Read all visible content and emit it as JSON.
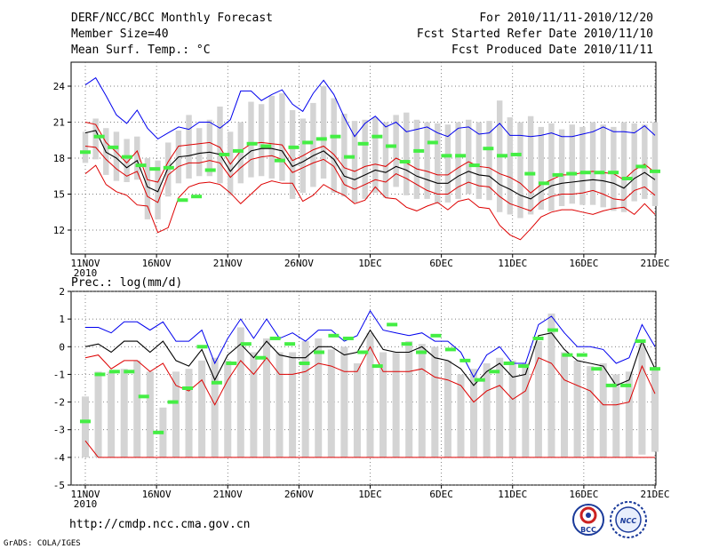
{
  "header": {
    "title": "DERF/NCC/BCC Monthly Forecast",
    "member": "Member Size=40",
    "variable": "Mean Surf. Temp.: °C",
    "period": "For 2010/11/11-2010/12/20",
    "refer": "Fcst Started Refer Date 2010/11/10",
    "produced": "Fcst Produced Date 2010/11/11"
  },
  "footer": {
    "url": "http://cmdp.ncc.cma.gov.cn",
    "grads": "GrADS: COLA/IGES",
    "bcc_logo": "BCC",
    "ncc_logo": "NCC"
  },
  "colors": {
    "max": "#0000ee",
    "min": "#dd0000",
    "p25": "#dd0000",
    "p75": "#dd0000",
    "mean": "#000000",
    "box": "#d4d4d4",
    "obs": "#44ee44"
  },
  "chart_data": [
    {
      "type": "box",
      "ylabel": "",
      "ylim": [
        10,
        26
      ],
      "yticks": [
        "12",
        "15",
        "18",
        "21",
        "24"
      ],
      "xticks": [
        "11NOV",
        "16NOV",
        "21NOV",
        "26NOV",
        "1DEC",
        "6DEC",
        "11DEC",
        "16DEC",
        "21DEC"
      ],
      "year_label": "2010",
      "max": [
        24.1,
        24.7,
        23.2,
        21.6,
        20.9,
        22.0,
        20.5,
        19.6,
        20.1,
        20.6,
        20.4,
        21.0,
        21.0,
        20.5,
        21.2,
        23.6,
        23.6,
        22.8,
        23.3,
        23.7,
        22.5,
        21.9,
        23.4,
        24.5,
        23.3,
        21.4,
        19.8,
        20.9,
        21.5,
        20.6,
        21.0,
        20.2,
        20.4,
        20.6,
        20.1,
        19.8,
        20.5,
        20.6,
        20.0,
        20.1,
        20.9,
        19.9,
        19.9,
        19.8,
        19.9,
        20.1,
        19.8,
        19.8,
        20.0,
        20.2,
        20.6,
        20.2,
        20.2,
        20.1,
        20.7,
        19.9
      ],
      "p75": [
        21.0,
        20.8,
        19.3,
        18.5,
        17.6,
        18.6,
        16.2,
        16.0,
        17.7,
        19.0,
        19.1,
        19.2,
        19.3,
        18.9,
        17.5,
        18.6,
        19.2,
        19.3,
        19.2,
        19.1,
        17.8,
        18.2,
        18.7,
        19.0,
        18.3,
        17.2,
        16.9,
        17.3,
        17.5,
        17.3,
        18.0,
        17.6,
        17.1,
        16.9,
        16.6,
        16.6,
        17.2,
        17.7,
        17.3,
        17.2,
        16.7,
        16.4,
        15.9,
        15.1,
        15.8,
        16.2,
        16.6,
        16.6,
        16.8,
        16.9,
        16.8,
        16.7,
        16.2,
        17.0,
        17.5,
        16.8
      ],
      "mean": [
        20.1,
        20.3,
        18.5,
        18.0,
        17.2,
        17.8,
        15.6,
        15.2,
        17.2,
        18.1,
        18.2,
        18.4,
        18.5,
        18.3,
        16.9,
        17.9,
        18.6,
        18.8,
        18.8,
        18.6,
        17.3,
        17.7,
        18.2,
        18.6,
        17.9,
        16.5,
        16.2,
        16.6,
        17.0,
        16.8,
        17.3,
        17.0,
        16.5,
        16.2,
        15.9,
        15.9,
        16.5,
        16.9,
        16.6,
        16.5,
        15.8,
        15.4,
        14.9,
        14.6,
        15.2,
        15.7,
        15.9,
        16.0,
        16.1,
        16.2,
        16.1,
        15.9,
        15.5,
        16.3,
        16.8,
        16.2
      ],
      "p25": [
        19.0,
        18.9,
        17.9,
        17.1,
        16.5,
        16.9,
        14.8,
        14.3,
        16.6,
        17.3,
        17.6,
        17.6,
        17.8,
        17.6,
        16.4,
        17.2,
        17.9,
        18.1,
        18.2,
        17.9,
        16.8,
        17.2,
        17.6,
        17.9,
        17.3,
        15.8,
        15.4,
        15.8,
        16.2,
        16.0,
        16.7,
        16.3,
        15.8,
        15.3,
        15.0,
        15.0,
        15.6,
        16.0,
        15.7,
        15.6,
        14.8,
        14.2,
        13.9,
        13.6,
        14.4,
        14.8,
        15.0,
        15.0,
        15.1,
        15.3,
        15.0,
        14.6,
        14.5,
        15.3,
        15.6,
        14.9
      ],
      "min": [
        16.7,
        17.4,
        15.8,
        15.2,
        14.9,
        14.1,
        14.0,
        11.8,
        12.2,
        14.7,
        15.6,
        15.9,
        16.0,
        15.8,
        15.1,
        14.2,
        15.0,
        15.8,
        16.1,
        15.9,
        15.9,
        14.4,
        14.9,
        15.8,
        15.3,
        14.9,
        14.2,
        14.5,
        15.6,
        14.7,
        14.6,
        13.9,
        13.6,
        14.0,
        14.3,
        13.7,
        14.4,
        14.6,
        13.9,
        13.8,
        12.4,
        11.6,
        11.2,
        12.1,
        13.1,
        13.5,
        13.7,
        13.7,
        13.5,
        13.3,
        13.6,
        13.8,
        13.9,
        13.3,
        14.2,
        13.3
      ],
      "box_top": [
        20.2,
        21.3,
        20.5,
        20.2,
        19.6,
        19.8,
        18.0,
        17.8,
        19.3,
        20.3,
        21.6,
        20.5,
        21.2,
        22.3,
        20.2,
        21.0,
        22.7,
        22.5,
        23.2,
        23.4,
        22.0,
        21.3,
        22.6,
        24.0,
        23.0,
        21.7,
        21.1,
        21.2,
        21.4,
        21.0,
        21.6,
        21.8,
        21.2,
        21.0,
        20.9,
        20.8,
        21.0,
        21.2,
        21.0,
        21.1,
        22.8,
        21.4,
        21.0,
        21.5,
        20.6,
        20.9,
        20.4,
        20.8,
        20.6,
        21.0,
        20.8,
        20.6,
        21.0,
        20.9,
        20.8,
        21.0
      ],
      "box_bottom": [
        17.6,
        17.9,
        16.6,
        16.1,
        16.0,
        16.2,
        12.9,
        12.9,
        14.8,
        15.9,
        16.3,
        16.5,
        16.5,
        15.9,
        14.9,
        15.9,
        16.4,
        16.5,
        16.3,
        16.1,
        14.6,
        15.1,
        15.6,
        16.3,
        15.1,
        14.8,
        14.3,
        14.6,
        15.1,
        14.7,
        15.6,
        14.9,
        14.6,
        14.6,
        14.2,
        14.3,
        14.6,
        15.0,
        14.6,
        14.5,
        13.5,
        13.3,
        13.0,
        13.3,
        13.7,
        13.6,
        14.0,
        14.2,
        14.1,
        14.1,
        13.9,
        13.6,
        13.5,
        14.4,
        14.6,
        14.0
      ],
      "obs": [
        18.5,
        19.8,
        18.9,
        18.1,
        17.4,
        17.1,
        17.2,
        14.5,
        14.8,
        17.0,
        18.3,
        18.6,
        19.2,
        19.0,
        17.8,
        18.9,
        19.3,
        19.6,
        19.8,
        18.1,
        19.2,
        19.8,
        19.0,
        17.7,
        18.6,
        19.3,
        18.2,
        18.2,
        17.4,
        18.8,
        18.2,
        18.3,
        16.7,
        15.9,
        16.6,
        16.7,
        16.8,
        16.8,
        16.8,
        16.3,
        17.3,
        16.9
      ]
    },
    {
      "type": "box",
      "title": "Prec.: log(mm/d)",
      "ylim": [
        -5,
        2
      ],
      "yticks": [
        "-5",
        "-4",
        "-3",
        "-2",
        "-1",
        "0",
        "1",
        "2"
      ],
      "xticks": [
        "11NOV",
        "16NOV",
        "21NOV",
        "26NOV",
        "1DEC",
        "6DEC",
        "11DEC",
        "16DEC",
        "21DEC"
      ],
      "year_label": "2010",
      "max": [
        0.7,
        0.7,
        0.5,
        0.9,
        0.9,
        0.6,
        0.9,
        0.2,
        0.2,
        0.6,
        -0.6,
        0.3,
        1.0,
        0.3,
        1.0,
        0.3,
        0.5,
        0.2,
        0.6,
        0.6,
        0.2,
        0.4,
        1.3,
        0.6,
        0.5,
        0.4,
        0.5,
        0.2,
        0.2,
        -0.2,
        -1.1,
        -0.3,
        0.0,
        -0.6,
        -0.6,
        0.8,
        1.1,
        0.5,
        0.0,
        0.0,
        -0.1,
        -0.6,
        -0.4,
        0.8,
        0.0
      ],
      "mean": [
        0.0,
        0.1,
        -0.2,
        0.2,
        0.2,
        -0.2,
        0.2,
        -0.5,
        -0.7,
        -0.1,
        -1.2,
        -0.3,
        0.1,
        -0.4,
        0.2,
        -0.3,
        -0.4,
        -0.4,
        0.0,
        0.0,
        -0.3,
        -0.2,
        0.6,
        -0.1,
        -0.2,
        -0.2,
        0.0,
        -0.4,
        -0.5,
        -0.8,
        -1.4,
        -0.9,
        -0.6,
        -1.1,
        -1.0,
        0.4,
        0.5,
        -0.1,
        -0.5,
        -0.6,
        -0.7,
        -1.4,
        -1.2,
        0.2,
        -0.8
      ],
      "min": [
        -0.4,
        -0.3,
        -0.8,
        -0.5,
        -0.5,
        -0.9,
        -0.6,
        -1.4,
        -1.6,
        -1.2,
        -2.1,
        -1.2,
        -0.5,
        -1.0,
        -0.4,
        -1.0,
        -1.0,
        -0.9,
        -0.6,
        -0.7,
        -0.9,
        -0.9,
        0.0,
        -0.9,
        -0.9,
        -0.9,
        -0.8,
        -1.1,
        -1.2,
        -1.4,
        -2.0,
        -1.6,
        -1.4,
        -1.9,
        -1.6,
        -0.4,
        -0.6,
        -1.2,
        -1.4,
        -1.6,
        -2.1,
        -2.1,
        -2.0,
        -0.7,
        -1.7
      ],
      "p25_low": [
        -3.4,
        -4.0,
        -4.0,
        -4.0,
        -4.0,
        -4.0,
        -4.0,
        -4.0,
        -4.0,
        -4.0,
        -4.0,
        -4.0,
        -4.0,
        -4.0,
        -4.0,
        -4.0,
        -4.0,
        -4.0,
        -4.0,
        -4.0,
        -4.0,
        -4.0,
        -4.0,
        -4.0,
        -4.0,
        -4.0,
        -4.0,
        -4.0,
        -4.0,
        -4.0,
        -4.0,
        -4.0,
        -4.0,
        -4.0,
        -4.0,
        -4.0,
        -4.0,
        -4.0,
        -4.0,
        -4.0,
        -4.0,
        -4.0,
        -4.0,
        -4.0,
        -4.0
      ],
      "box_top": [
        -1.8,
        -0.9,
        -0.9,
        -0.8,
        -0.5,
        -0.9,
        -2.2,
        -0.9,
        -0.8,
        -0.5,
        -0.4,
        -0.5,
        0.7,
        -0.2,
        0.3,
        -0.2,
        -0.2,
        0.2,
        0.3,
        -0.1,
        0.0,
        -0.6,
        0.5,
        -0.2,
        -0.2,
        0.2,
        0.1,
        0.0,
        -0.5,
        -1.0,
        -0.8,
        -0.6,
        -0.4,
        -0.5,
        -0.6,
        0.2,
        1.2,
        -0.2,
        -0.5,
        -0.7,
        -0.6,
        -1.0,
        -0.9,
        0.1,
        -0.8
      ],
      "box_bottom": [
        -4.0,
        -4.0,
        -4.0,
        -4.0,
        -4.0,
        -4.0,
        -4.0,
        -4.0,
        -4.0,
        -4.0,
        -4.0,
        -4.0,
        -4.0,
        -4.0,
        -4.0,
        -4.0,
        -4.0,
        -4.0,
        -4.0,
        -4.0,
        -4.0,
        -4.0,
        -4.0,
        -4.0,
        -4.0,
        -4.0,
        -4.0,
        -4.0,
        -4.0,
        -4.0,
        -4.0,
        -4.0,
        -4.0,
        -4.0,
        -4.0,
        -4.0,
        -4.0,
        -4.0,
        -4.0,
        -4.0,
        -4.0,
        -4.0,
        -4.0,
        -3.9,
        -3.8
      ],
      "obs": [
        -2.7,
        -1.0,
        -0.9,
        -0.9,
        -1.8,
        -3.1,
        -2.0,
        -1.5,
        0.0,
        -1.3,
        -0.6,
        0.1,
        -0.4,
        0.3,
        0.1,
        -0.6,
        -0.2,
        0.4,
        0.3,
        -0.2,
        -0.7,
        0.8,
        0.1,
        -0.2,
        0.4,
        -0.1,
        -0.5,
        -1.2,
        -0.9,
        -0.6,
        -0.7,
        0.3,
        0.6,
        -0.3,
        -0.3,
        -0.8,
        -1.4,
        -1.4,
        0.2,
        -0.8
      ]
    }
  ]
}
